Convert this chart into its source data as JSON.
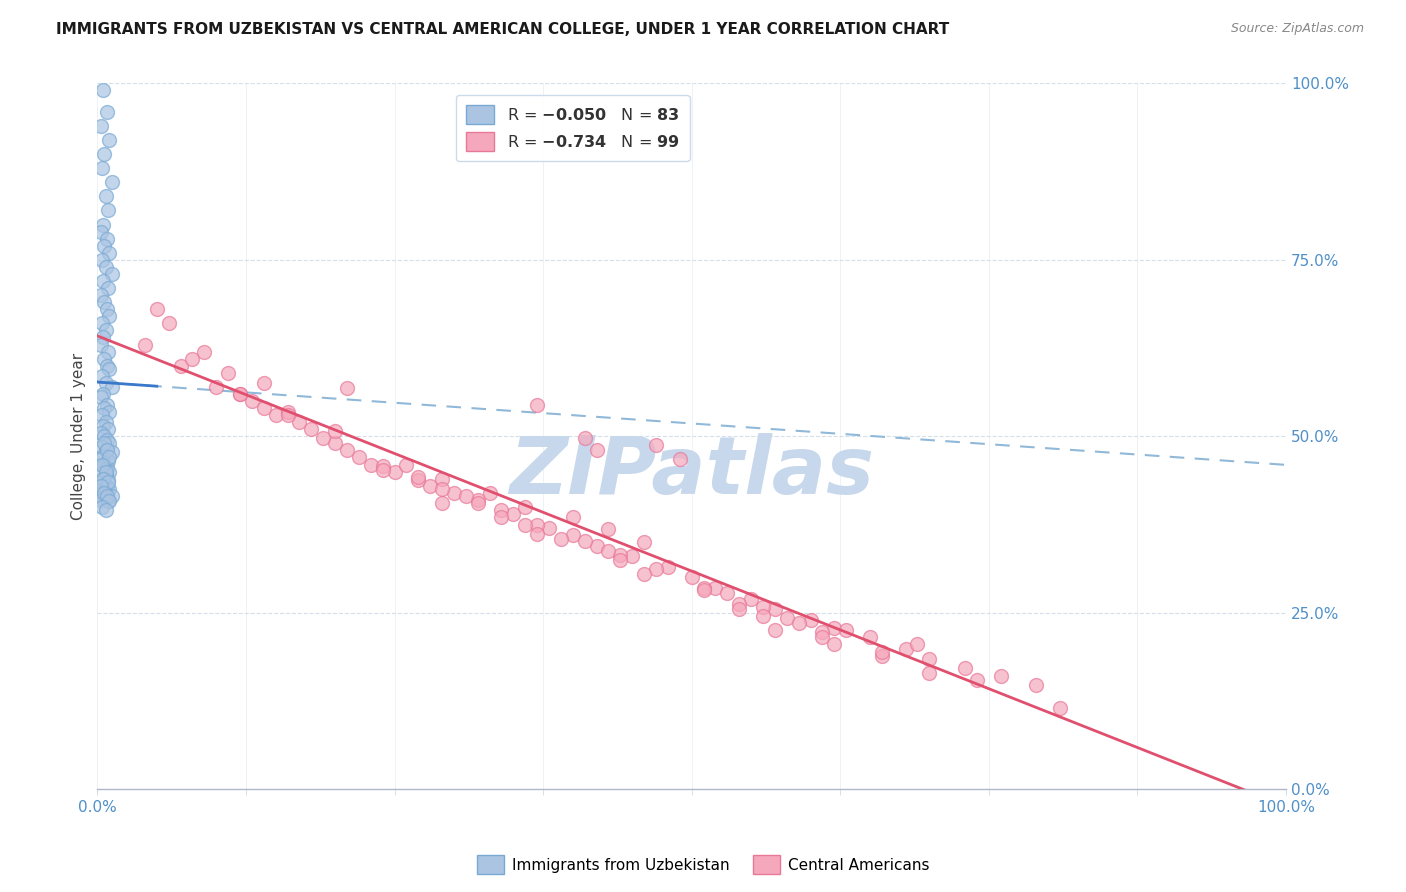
{
  "title": "IMMIGRANTS FROM UZBEKISTAN VS CENTRAL AMERICAN COLLEGE, UNDER 1 YEAR CORRELATION CHART",
  "source": "Source: ZipAtlas.com",
  "ylabel": "College, Under 1 year",
  "ytick_values": [
    0.0,
    0.25,
    0.5,
    0.75,
    1.0
  ],
  "xlim": [
    0.0,
    1.0
  ],
  "ylim": [
    0.0,
    1.0
  ],
  "uzbek_color": "#aac4e2",
  "uzbek_edge": "#7aaad4",
  "central_color": "#f5a8bc",
  "central_edge": "#e87898",
  "uzbek_line_color": "#3a78c9",
  "central_line_color": "#e0506e",
  "uzbek_dash_color": "#90b8d8",
  "watermark": "ZIPatlas",
  "watermark_color": "#c8d8ec",
  "background": "#ffffff",
  "grid_color": "#d0dce8",
  "tick_color": "#5090c8",
  "uzbek_scatter_x": [
    0.005,
    0.008,
    0.003,
    0.01,
    0.006,
    0.004,
    0.012,
    0.007,
    0.009,
    0.005,
    0.003,
    0.008,
    0.006,
    0.01,
    0.004,
    0.007,
    0.012,
    0.005,
    0.009,
    0.003,
    0.006,
    0.008,
    0.01,
    0.004,
    0.007,
    0.005,
    0.003,
    0.009,
    0.006,
    0.008,
    0.01,
    0.004,
    0.007,
    0.012,
    0.005,
    0.003,
    0.008,
    0.006,
    0.01,
    0.004,
    0.007,
    0.005,
    0.009,
    0.003,
    0.006,
    0.008,
    0.01,
    0.004,
    0.007,
    0.012,
    0.005,
    0.003,
    0.009,
    0.006,
    0.008,
    0.01,
    0.004,
    0.007,
    0.005,
    0.009,
    0.003,
    0.006,
    0.008,
    0.01,
    0.004,
    0.007,
    0.012,
    0.005,
    0.003,
    0.009,
    0.006,
    0.008,
    0.01,
    0.004,
    0.007,
    0.005,
    0.009,
    0.003,
    0.006,
    0.008,
    0.01,
    0.004,
    0.007
  ],
  "uzbek_scatter_y": [
    0.99,
    0.96,
    0.94,
    0.92,
    0.9,
    0.88,
    0.86,
    0.84,
    0.82,
    0.8,
    0.79,
    0.78,
    0.77,
    0.76,
    0.75,
    0.74,
    0.73,
    0.72,
    0.71,
    0.7,
    0.69,
    0.68,
    0.67,
    0.66,
    0.65,
    0.64,
    0.63,
    0.62,
    0.61,
    0.6,
    0.595,
    0.585,
    0.575,
    0.57,
    0.56,
    0.555,
    0.545,
    0.54,
    0.535,
    0.53,
    0.52,
    0.515,
    0.51,
    0.505,
    0.5,
    0.495,
    0.49,
    0.485,
    0.48,
    0.478,
    0.472,
    0.468,
    0.465,
    0.46,
    0.455,
    0.45,
    0.448,
    0.445,
    0.44,
    0.438,
    0.435,
    0.43,
    0.428,
    0.425,
    0.42,
    0.418,
    0.415,
    0.412,
    0.41,
    0.408,
    0.49,
    0.48,
    0.47,
    0.46,
    0.45,
    0.44,
    0.435,
    0.43,
    0.42,
    0.415,
    0.408,
    0.4,
    0.395
  ],
  "central_scatter_x": [
    0.04,
    0.07,
    0.1,
    0.05,
    0.08,
    0.13,
    0.09,
    0.18,
    0.15,
    0.12,
    0.2,
    0.23,
    0.11,
    0.28,
    0.25,
    0.14,
    0.32,
    0.3,
    0.17,
    0.35,
    0.38,
    0.21,
    0.4,
    0.42,
    0.26,
    0.45,
    0.48,
    0.29,
    0.5,
    0.52,
    0.33,
    0.55,
    0.57,
    0.36,
    0.6,
    0.62,
    0.4,
    0.65,
    0.68,
    0.43,
    0.7,
    0.73,
    0.46,
    0.76,
    0.79,
    0.12,
    0.16,
    0.2,
    0.24,
    0.27,
    0.31,
    0.34,
    0.37,
    0.41,
    0.44,
    0.47,
    0.51,
    0.54,
    0.58,
    0.61,
    0.06,
    0.22,
    0.42,
    0.56,
    0.34,
    0.49,
    0.63,
    0.69,
    0.41,
    0.37,
    0.53,
    0.47,
    0.59,
    0.21,
    0.29,
    0.39,
    0.66,
    0.74,
    0.81,
    0.16,
    0.44,
    0.51,
    0.66,
    0.36,
    0.27,
    0.61,
    0.7,
    0.14,
    0.57,
    0.46,
    0.32,
    0.24,
    0.56,
    0.43,
    0.37,
    0.19,
    0.62,
    0.54,
    0.29
  ],
  "central_scatter_y": [
    0.63,
    0.6,
    0.57,
    0.68,
    0.61,
    0.55,
    0.62,
    0.51,
    0.53,
    0.56,
    0.49,
    0.46,
    0.59,
    0.43,
    0.45,
    0.54,
    0.41,
    0.42,
    0.52,
    0.39,
    0.37,
    0.48,
    0.36,
    0.345,
    0.46,
    0.33,
    0.315,
    0.44,
    0.3,
    0.285,
    0.42,
    0.27,
    0.255,
    0.4,
    0.24,
    0.228,
    0.385,
    0.215,
    0.198,
    0.368,
    0.185,
    0.172,
    0.35,
    0.16,
    0.148,
    0.56,
    0.535,
    0.508,
    0.458,
    0.438,
    0.415,
    0.395,
    0.375,
    0.352,
    0.332,
    0.312,
    0.285,
    0.262,
    0.242,
    0.222,
    0.66,
    0.47,
    0.48,
    0.258,
    0.385,
    0.468,
    0.225,
    0.205,
    0.498,
    0.545,
    0.278,
    0.488,
    0.235,
    0.568,
    0.425,
    0.355,
    0.188,
    0.155,
    0.115,
    0.53,
    0.325,
    0.282,
    0.195,
    0.375,
    0.442,
    0.215,
    0.165,
    0.575,
    0.225,
    0.305,
    0.405,
    0.452,
    0.245,
    0.338,
    0.362,
    0.498,
    0.205,
    0.255,
    0.405
  ]
}
